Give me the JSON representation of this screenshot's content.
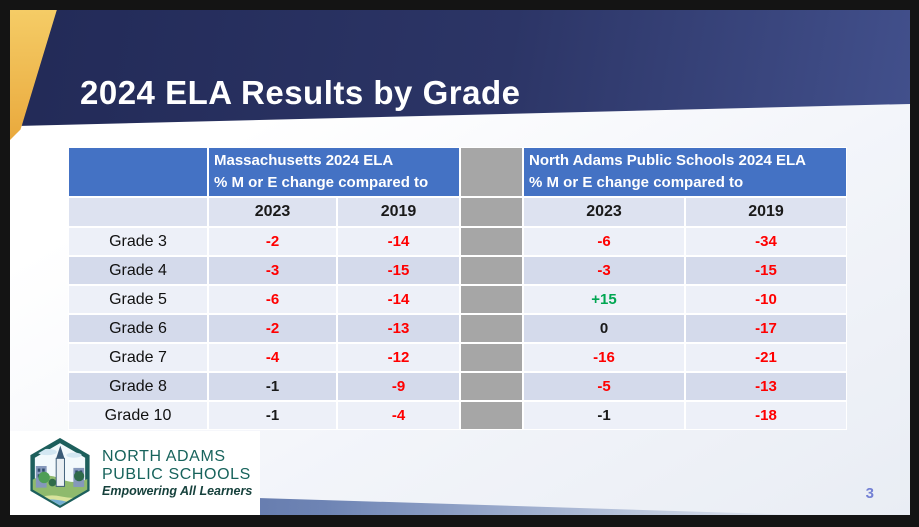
{
  "slide": {
    "title": "2024 ELA Results by Grade",
    "page_number": "3"
  },
  "table": {
    "left_group_header": {
      "line1": "Massachusetts 2024 ELA",
      "line2": "% M or E change compared to"
    },
    "right_group_header": {
      "line1": "North Adams Public Schools 2024 ELA",
      "line2": "% M or E change compared to"
    },
    "year_columns": [
      "2023",
      "2019"
    ],
    "rows": [
      {
        "grade": "Grade 3",
        "cells": [
          {
            "text": "-2",
            "tone": "negative"
          },
          {
            "text": "-14",
            "tone": "negative"
          },
          {
            "text": "-6",
            "tone": "negative"
          },
          {
            "text": "-34",
            "tone": "negative"
          }
        ]
      },
      {
        "grade": "Grade 4",
        "cells": [
          {
            "text": "-3",
            "tone": "negative"
          },
          {
            "text": "-15",
            "tone": "negative"
          },
          {
            "text": "-3",
            "tone": "negative"
          },
          {
            "text": "-15",
            "tone": "negative"
          }
        ]
      },
      {
        "grade": "Grade 5",
        "cells": [
          {
            "text": "-6",
            "tone": "negative"
          },
          {
            "text": "-14",
            "tone": "negative"
          },
          {
            "text": "+15",
            "tone": "positive"
          },
          {
            "text": "-10",
            "tone": "negative"
          }
        ]
      },
      {
        "grade": "Grade 6",
        "cells": [
          {
            "text": "-2",
            "tone": "negative"
          },
          {
            "text": "-13",
            "tone": "negative"
          },
          {
            "text": "0",
            "tone": "neutral"
          },
          {
            "text": "-17",
            "tone": "negative"
          }
        ]
      },
      {
        "grade": "Grade 7",
        "cells": [
          {
            "text": "-4",
            "tone": "negative"
          },
          {
            "text": "-12",
            "tone": "negative"
          },
          {
            "text": "-16",
            "tone": "negative"
          },
          {
            "text": "-21",
            "tone": "negative"
          }
        ]
      },
      {
        "grade": "Grade 8",
        "cells": [
          {
            "text": "-1",
            "tone": "neutral"
          },
          {
            "text": "-9",
            "tone": "negative"
          },
          {
            "text": "-5",
            "tone": "negative"
          },
          {
            "text": "-13",
            "tone": "negative"
          }
        ]
      },
      {
        "grade": "Grade 10",
        "cells": [
          {
            "text": "-1",
            "tone": "neutral"
          },
          {
            "text": "-4",
            "tone": "negative"
          },
          {
            "text": "-1",
            "tone": "neutral"
          },
          {
            "text": "-18",
            "tone": "negative"
          }
        ]
      }
    ]
  },
  "logo": {
    "line1": "NORTH ADAMS",
    "line2": "PUBLIC SCHOOLS",
    "tagline": "Empowering All Learners"
  },
  "colors": {
    "header_blue": "#4472C4",
    "spacer_gray": "#A6A6A6",
    "negative_red": "#FF0000",
    "positive_green": "#00A651",
    "neutral_black": "#1A1A1A",
    "banner_navy": "#2C3566",
    "accent_gold": "#E9A93D",
    "page_number_blue": "#7380D4"
  }
}
